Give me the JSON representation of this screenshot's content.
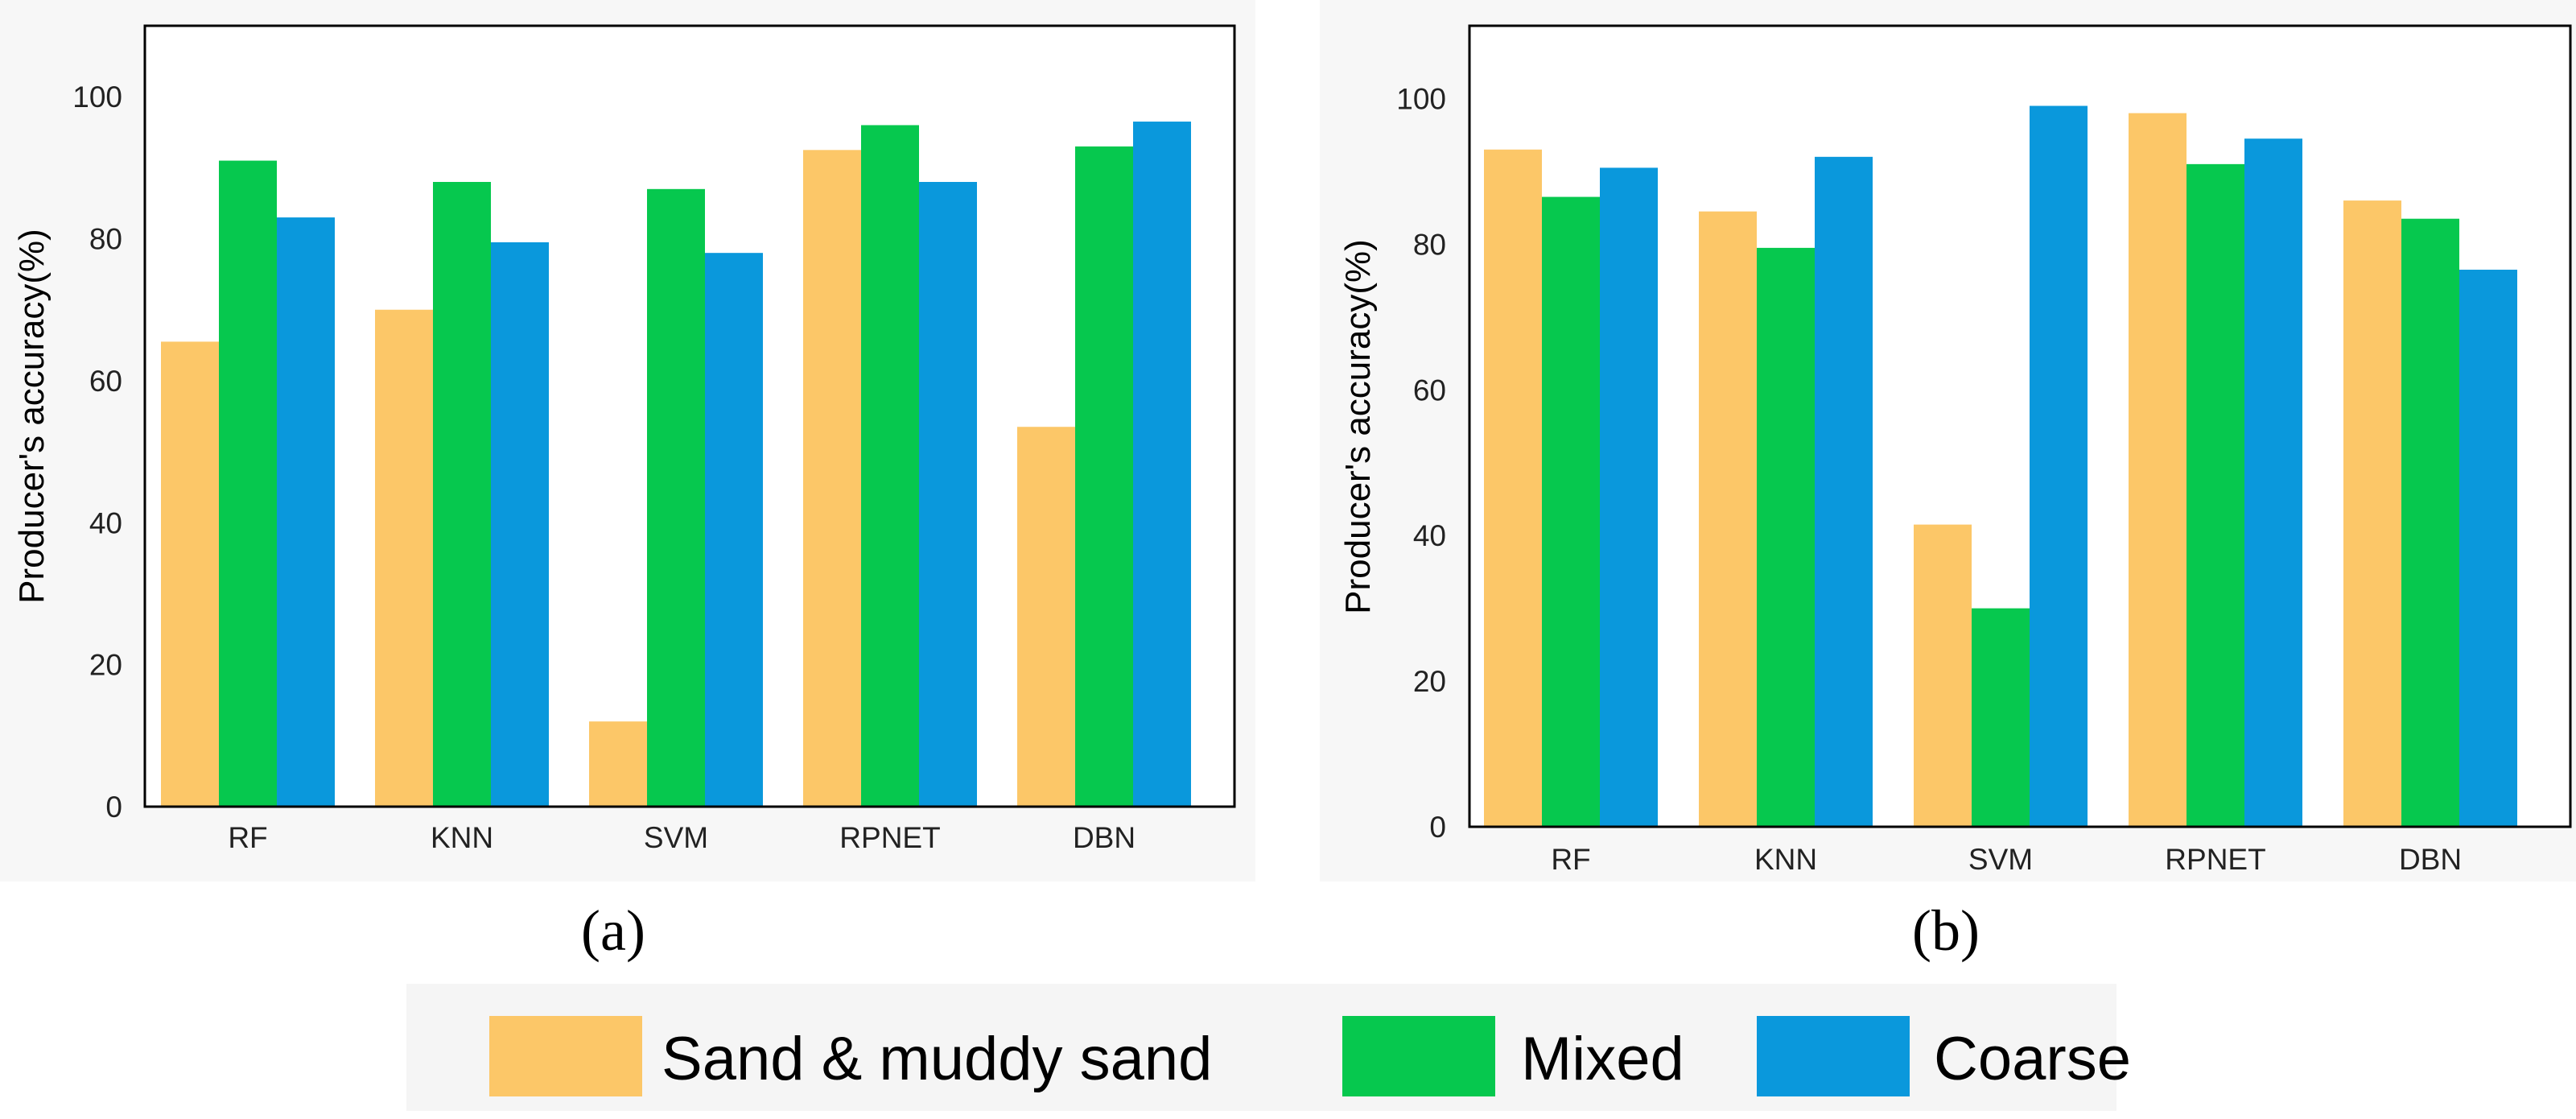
{
  "chart_data": [
    {
      "type": "bar",
      "panel_label": "(a)",
      "ylabel": "Producer's accuracy(%)",
      "categories": [
        "RF",
        "KNN",
        "SVM",
        "RPNET",
        "DBN"
      ],
      "ylim": [
        0,
        110
      ],
      "yticks": [
        0,
        20,
        40,
        60,
        80,
        100
      ],
      "series": [
        {
          "name": "Sand & muddy sand",
          "values": [
            65.5,
            70,
            12,
            92.5,
            53.5
          ]
        },
        {
          "name": "Mixed",
          "values": [
            91,
            88,
            87,
            96,
            93
          ]
        },
        {
          "name": "Coarse",
          "values": [
            83,
            79.5,
            78,
            88,
            96.5
          ]
        }
      ]
    },
    {
      "type": "bar",
      "panel_label": "(b)",
      "ylabel": "Producer's accuracy(%)",
      "categories": [
        "RF",
        "KNN",
        "SVM",
        "RPNET",
        "DBN"
      ],
      "ylim": [
        0,
        110
      ],
      "yticks": [
        0,
        20,
        40,
        60,
        80,
        100
      ],
      "series": [
        {
          "name": "Sand & muddy sand",
          "values": [
            93,
            84.5,
            41.5,
            98,
            86
          ]
        },
        {
          "name": "Mixed",
          "values": [
            86.5,
            79.5,
            30,
            91,
            83.5
          ]
        },
        {
          "name": "Coarse",
          "values": [
            90.5,
            92,
            99,
            94.5,
            76.5
          ]
        }
      ]
    }
  ],
  "legend": {
    "items": [
      {
        "label": "Sand & muddy sand",
        "color": "#FCC768"
      },
      {
        "label": "Mixed",
        "color": "#06C84E"
      },
      {
        "label": "Coarse",
        "color": "#0A98DC"
      }
    ]
  },
  "colors": [
    "#FCC768",
    "#06C84E",
    "#0A98DC"
  ]
}
